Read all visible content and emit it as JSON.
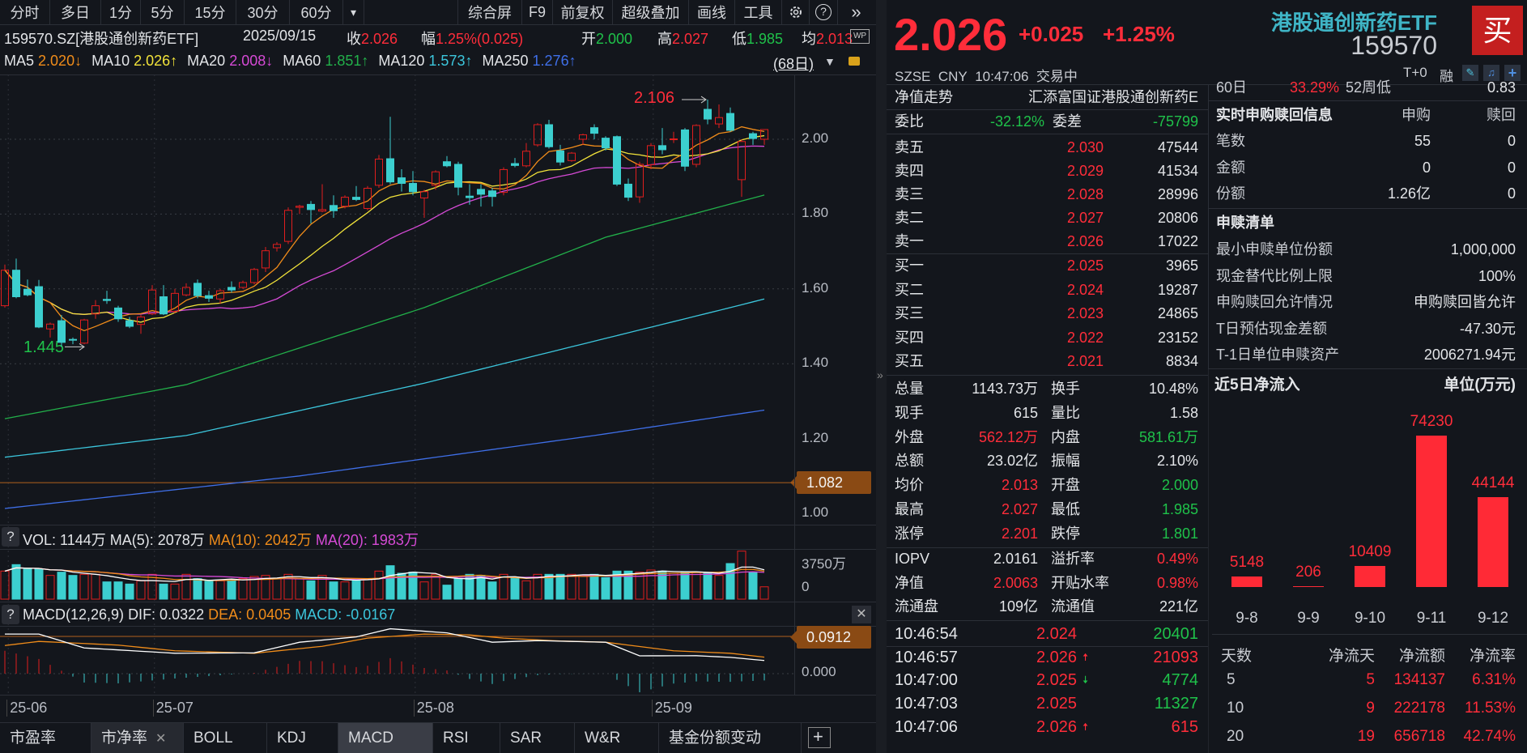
{
  "toolbar": {
    "left": [
      "分时",
      "多日",
      "1分",
      "5分",
      "15分",
      "30分",
      "60分"
    ],
    "more": "▾",
    "right": [
      "综合屏",
      "F9",
      "前复权",
      "超级叠加",
      "画线",
      "工具"
    ],
    "icons": [
      "gear-icon",
      "help-icon",
      "collapse-icon"
    ]
  },
  "info": {
    "code_name": "159570.SZ[港股通创新药ETF]",
    "date": "2025/09/15",
    "close_label": "收",
    "close": "2.026",
    "amp_label": "幅",
    "amp": "1.25%(0.025)",
    "open_label": "开",
    "open": "2.000",
    "high_label": "高",
    "high": "2.027",
    "low_label": "低",
    "low": "1.985",
    "avg_label": "均",
    "avg": "2.013",
    "wp_icon": "WP"
  },
  "ma_legend": {
    "items": [
      {
        "label": "MA5",
        "value": "2.020↓",
        "color": "#f08c1a"
      },
      {
        "label": "MA10",
        "value": "2.026↑",
        "color": "#f2e33a"
      },
      {
        "label": "MA20",
        "value": "2.008↓",
        "color": "#d64ad6"
      },
      {
        "label": "MA60",
        "value": "1.851↑",
        "color": "#22b04a"
      },
      {
        "label": "MA120",
        "value": "1.573↑",
        "color": "#3cc6dc"
      },
      {
        "label": "MA250",
        "value": "1.276↑",
        "color": "#3f6fe8"
      }
    ],
    "period": "(68日)",
    "dropdown": "▼"
  },
  "chart_data": {
    "type": "candlestick",
    "y_ticks": [
      "2.00",
      "1.80",
      "1.60",
      "1.40",
      "1.20",
      "1.00"
    ],
    "high_marker": "2.106",
    "low_marker": "1.445",
    "ref_line": "1.082",
    "colors": {
      "up": "#e01e1e",
      "down": "#3ccfcf"
    },
    "candles": [
      [
        1.555,
        1.665,
        1.55,
        1.65
      ],
      [
        1.65,
        1.681,
        1.575,
        1.579
      ],
      [
        1.599,
        1.625,
        1.58,
        1.584
      ],
      [
        1.606,
        1.624,
        1.495,
        1.498
      ],
      [
        1.493,
        1.51,
        1.47,
        1.506
      ],
      [
        1.515,
        1.53,
        1.445,
        1.457
      ],
      [
        1.465,
        1.47,
        1.452,
        1.463
      ],
      [
        1.455,
        1.52,
        1.452,
        1.517
      ],
      [
        1.533,
        1.57,
        1.52,
        1.555
      ],
      [
        1.572,
        1.595,
        1.56,
        1.569
      ],
      [
        1.549,
        1.555,
        1.512,
        1.52
      ],
      [
        1.515,
        1.525,
        1.495,
        1.5
      ],
      [
        1.505,
        1.53,
        1.48,
        1.525
      ],
      [
        1.533,
        1.61,
        1.53,
        1.597
      ],
      [
        1.579,
        1.61,
        1.53,
        1.533
      ],
      [
        1.54,
        1.6,
        1.535,
        1.588
      ],
      [
        1.584,
        1.615,
        1.58,
        1.604
      ],
      [
        1.615,
        1.625,
        1.575,
        1.582
      ],
      [
        1.582,
        1.595,
        1.565,
        1.575
      ],
      [
        1.573,
        1.6,
        1.56,
        1.595
      ],
      [
        1.604,
        1.62,
        1.59,
        1.597
      ],
      [
        1.604,
        1.622,
        1.6,
        1.617
      ],
      [
        1.617,
        1.656,
        1.612,
        1.652
      ],
      [
        1.656,
        1.712,
        1.645,
        1.702
      ],
      [
        1.71,
        1.725,
        1.7,
        1.719
      ],
      [
        1.727,
        1.818,
        1.72,
        1.81
      ],
      [
        1.818,
        1.825,
        1.8,
        1.821
      ],
      [
        1.826,
        1.835,
        1.775,
        1.812
      ],
      [
        1.808,
        1.88,
        1.805,
        1.812
      ],
      [
        1.823,
        1.85,
        1.79,
        1.809
      ],
      [
        1.821,
        1.85,
        1.815,
        1.845
      ],
      [
        1.845,
        1.875,
        1.835,
        1.839
      ],
      [
        1.815,
        1.875,
        1.81,
        1.869
      ],
      [
        1.877,
        1.958,
        1.87,
        1.947
      ],
      [
        1.948,
        2.06,
        1.88,
        1.886
      ],
      [
        1.897,
        1.92,
        1.86,
        1.882
      ],
      [
        1.882,
        1.915,
        1.85,
        1.86
      ],
      [
        1.843,
        1.865,
        1.79,
        1.86
      ],
      [
        1.877,
        1.917,
        1.865,
        1.913
      ],
      [
        1.94,
        1.955,
        1.925,
        1.929
      ],
      [
        1.933,
        1.94,
        1.85,
        1.872
      ],
      [
        1.848,
        1.88,
        1.825,
        1.844
      ],
      [
        1.866,
        1.88,
        1.82,
        1.853
      ],
      [
        1.862,
        1.87,
        1.82,
        1.847
      ],
      [
        1.858,
        1.925,
        1.85,
        1.919
      ],
      [
        1.935,
        1.95,
        1.925,
        1.93
      ],
      [
        1.929,
        1.99,
        1.925,
        1.968
      ],
      [
        1.985,
        2.043,
        1.98,
        2.039
      ],
      [
        2.039,
        2.052,
        1.975,
        1.98
      ],
      [
        1.969,
        1.985,
        1.93,
        1.939
      ],
      [
        1.943,
        1.966,
        1.94,
        1.963
      ],
      [
        2.0,
        2.015,
        1.985,
        2.012
      ],
      [
        2.031,
        2.04,
        2.0,
        2.016
      ],
      [
        2.003,
        2.008,
        1.97,
        1.977
      ],
      [
        2.007,
        2.01,
        1.875,
        1.88
      ],
      [
        1.88,
        1.895,
        1.835,
        1.845
      ],
      [
        1.846,
        1.94,
        1.83,
        1.933
      ],
      [
        1.932,
        1.99,
        1.92,
        1.983
      ],
      [
        1.983,
        2.03,
        1.96,
        1.972
      ],
      [
        2.0,
        2.02,
        1.99,
        2.001
      ],
      [
        2.025,
        2.03,
        1.915,
        1.928
      ],
      [
        1.933,
        2.04,
        1.925,
        2.037
      ],
      [
        2.08,
        2.106,
        2.04,
        2.054
      ],
      [
        2.041,
        2.093,
        2.03,
        2.058
      ],
      [
        2.069,
        2.085,
        2.02,
        2.024
      ],
      [
        1.892,
        2.0,
        1.846,
        1.994
      ],
      [
        2.015,
        2.02,
        1.985,
        2.002
      ],
      [
        2.0,
        2.027,
        1.985,
        2.026
      ]
    ],
    "ma60": [
      [
        0,
        1.253
      ],
      [
        16,
        1.344
      ],
      [
        37,
        1.55
      ],
      [
        53,
        1.738
      ],
      [
        67,
        1.851
      ]
    ],
    "ma120": [
      [
        0,
        1.15
      ],
      [
        16,
        1.208
      ],
      [
        37,
        1.348
      ],
      [
        64,
        1.55
      ],
      [
        67,
        1.573
      ]
    ],
    "ma250": [
      [
        0,
        1.013
      ],
      [
        26,
        1.1
      ],
      [
        52,
        1.208
      ],
      [
        67,
        1.276
      ]
    ],
    "x_ticks": [
      {
        "label": "25-06",
        "index": 0.3
      },
      {
        "label": "25-07",
        "index": 13.2
      },
      {
        "label": "25-08",
        "index": 36.2
      },
      {
        "label": "25-09",
        "index": 57.2
      }
    ]
  },
  "volume": {
    "legend": {
      "vol": "VOL: 1144万",
      "ma5": "MA(5): 2078万",
      "ma10": "MA(10): 2042万",
      "ma20": "MA(20): 1983万"
    },
    "ticks": [
      "3750万",
      "0"
    ],
    "values": [
      2600,
      3200,
      2800,
      2800,
      2200,
      2500,
      2200,
      2300,
      2300,
      1600,
      1600,
      1400,
      1700,
      2300,
      1400,
      1400,
      2300,
      1900,
      1700,
      1700,
      1700,
      1900,
      2100,
      2200,
      1900,
      2300,
      1900,
      1700,
      2200,
      1600,
      1600,
      1700,
      1900,
      2600,
      3100,
      2400,
      2500,
      1600,
      2300,
      1300,
      1900,
      2300,
      2200,
      1600,
      2300,
      2000,
      1700,
      2300,
      2300,
      2300,
      2300,
      2100,
      2300,
      2000,
      2600,
      2600,
      2500,
      2700,
      2600,
      2400,
      2500,
      2500,
      2400,
      2200,
      3300,
      4450,
      2500,
      1144
    ]
  },
  "macd": {
    "legend": {
      "name": "MACD(12,26,9)",
      "dif": "DIF: 0.0322",
      "dea": "DEA: 0.0405",
      "macd": "MACD: -0.0167"
    },
    "ticks": [
      "0.0912",
      "0.000"
    ],
    "dif": [
      [
        0,
        0.097
      ],
      [
        3,
        0.097
      ],
      [
        7,
        0.063
      ],
      [
        15,
        0.05
      ],
      [
        22,
        0.051
      ],
      [
        26,
        0.077
      ],
      [
        31,
        0.09
      ],
      [
        34,
        0.11
      ],
      [
        39,
        0.1
      ],
      [
        43,
        0.077
      ],
      [
        47,
        0.081
      ],
      [
        53,
        0.077
      ],
      [
        56,
        0.0437
      ],
      [
        61,
        0.044
      ],
      [
        64,
        0.04
      ],
      [
        67,
        0.0322
      ]
    ],
    "dea": [
      [
        0,
        0.069
      ],
      [
        3,
        0.079
      ],
      [
        10,
        0.07
      ],
      [
        15,
        0.056
      ],
      [
        22,
        0.05
      ],
      [
        28,
        0.067
      ],
      [
        32,
        0.087
      ],
      [
        37,
        0.097
      ],
      [
        41,
        0.095
      ],
      [
        44,
        0.087
      ],
      [
        49,
        0.08
      ],
      [
        53,
        0.077
      ],
      [
        59,
        0.056
      ],
      [
        64,
        0.05
      ],
      [
        67,
        0.0405
      ]
    ]
  },
  "help": "?",
  "close_icon": "✕",
  "bottom_tabs": [
    "市盈率",
    "市净率",
    "BOLL",
    "KDJ",
    "MACD",
    "RSI",
    "SAR",
    "W&R",
    "基金份额变动"
  ],
  "add_tab": "+",
  "quote": {
    "price": "2.026",
    "change": "+0.025",
    "pct": "+1.25%",
    "name": "港股通创新药ETF",
    "code": "159570",
    "buy": "买",
    "exchange": "SZSE",
    "currency": "CNY",
    "time": "10:47:06",
    "status": "交易中",
    "t0": "T+0",
    "rong": "融"
  },
  "orderbook": {
    "nav_label": "净值走势",
    "nav_name": "汇添富国证港股通创新药E",
    "weibi_label": "委比",
    "weibi": "-32.12%",
    "weicha_label": "委差",
    "weicha": "-75799",
    "asks": [
      {
        "label": "卖五",
        "price": "2.030",
        "vol": "47544"
      },
      {
        "label": "卖四",
        "price": "2.029",
        "vol": "41534"
      },
      {
        "label": "卖三",
        "price": "2.028",
        "vol": "28996"
      },
      {
        "label": "卖二",
        "price": "2.027",
        "vol": "20806"
      },
      {
        "label": "卖一",
        "price": "2.026",
        "vol": "17022"
      }
    ],
    "bids": [
      {
        "label": "买一",
        "price": "2.025",
        "vol": "3965"
      },
      {
        "label": "买二",
        "price": "2.024",
        "vol": "19287"
      },
      {
        "label": "买三",
        "price": "2.023",
        "vol": "24865"
      },
      {
        "label": "买四",
        "price": "2.022",
        "vol": "23152"
      },
      {
        "label": "买五",
        "price": "2.021",
        "vol": "8834"
      }
    ],
    "stats": [
      {
        "l1": "总量",
        "v1": "1143.73万",
        "c1": "white",
        "l2": "换手",
        "v2": "10.48%",
        "c2": "white"
      },
      {
        "l1": "现手",
        "v1": "615",
        "c1": "white",
        "l2": "量比",
        "v2": "1.58",
        "c2": "white"
      },
      {
        "l1": "外盘",
        "v1": "562.12万",
        "c1": "red",
        "l2": "内盘",
        "v2": "581.61万",
        "c2": "green"
      },
      {
        "l1": "总额",
        "v1": "23.02亿",
        "c1": "white",
        "l2": "振幅",
        "v2": "2.10%",
        "c2": "white"
      },
      {
        "l1": "均价",
        "v1": "2.013",
        "c1": "red",
        "l2": "开盘",
        "v2": "2.000",
        "c2": "green"
      },
      {
        "l1": "最高",
        "v1": "2.027",
        "c1": "red",
        "l2": "最低",
        "v2": "1.985",
        "c2": "green"
      },
      {
        "l1": "涨停",
        "v1": "2.201",
        "c1": "red",
        "l2": "跌停",
        "v2": "1.801",
        "c2": "green"
      }
    ],
    "fund": [
      {
        "l1": "IOPV",
        "v1": "2.0161",
        "c1": "white",
        "l2": "溢折率",
        "v2": "0.49%",
        "c2": "red"
      },
      {
        "l1": "净值",
        "v1": "2.0063",
        "c1": "red",
        "l2": "开贴水率",
        "v2": "0.98%",
        "c2": "red"
      },
      {
        "l1": "流通盘",
        "v1": "109亿",
        "c1": "white",
        "l2": "流通值",
        "v2": "221亿",
        "c2": "white"
      }
    ],
    "trades": [
      {
        "time": "10:46:54",
        "price": "2.024",
        "arrow": "",
        "vol": "20401",
        "vc": "green",
        "ac": "red"
      },
      {
        "time": "10:46:57",
        "price": "2.026",
        "arrow": "🠅",
        "vol": "21093",
        "vc": "red",
        "ac": "red"
      },
      {
        "time": "10:47:00",
        "price": "2.025",
        "arrow": "🠇",
        "vol": "4774",
        "vc": "green",
        "ac": "green"
      },
      {
        "time": "10:47:03",
        "price": "2.025",
        "arrow": "",
        "vol": "11327",
        "vc": "green",
        "ac": "red"
      },
      {
        "time": "10:47:06",
        "price": "2.026",
        "arrow": "🠅",
        "vol": "615",
        "vc": "red",
        "ac": "red"
      }
    ]
  },
  "subscription": {
    "top_row": {
      "l1": "60日",
      "v1": "33.29%",
      "l2": "52周低",
      "v2": "0.83"
    },
    "title": "实时申购赎回信息",
    "col1": "申购",
    "col2": "赎回",
    "rows": [
      {
        "label": "笔数",
        "a": "55",
        "b": "0"
      },
      {
        "label": "金额",
        "a": "0",
        "b": "0"
      },
      {
        "label": "份额",
        "a": "1.26亿",
        "b": "0"
      }
    ],
    "list_title": "申赎清单",
    "list": [
      {
        "label": "最小申赎单位份额",
        "value": "1,000,000"
      },
      {
        "label": "现金替代比例上限",
        "value": "100%"
      },
      {
        "label": "申购赎回允许情况",
        "value": "申购赎回皆允许"
      },
      {
        "label": "T日预估现金差额",
        "value": "-47.30元"
      },
      {
        "label": "T-1日单位申赎资产",
        "value": "2006271.94元"
      }
    ]
  },
  "flow": {
    "title": "近5日净流入",
    "unit": "单位(万元)",
    "chart_data": {
      "type": "bar",
      "categories": [
        "9-8",
        "9-9",
        "9-10",
        "9-11",
        "9-12"
      ],
      "values": [
        5148,
        206,
        10409,
        74230,
        44144
      ],
      "color": "#ff2a36"
    },
    "table": {
      "headers": [
        "天数",
        "净流天",
        "净流额",
        "净流率"
      ],
      "rows": [
        [
          "5",
          "5",
          "134137",
          "6.31%"
        ],
        [
          "10",
          "9",
          "222178",
          "11.53%"
        ],
        [
          "20",
          "19",
          "656718",
          "42.74%"
        ]
      ]
    }
  }
}
